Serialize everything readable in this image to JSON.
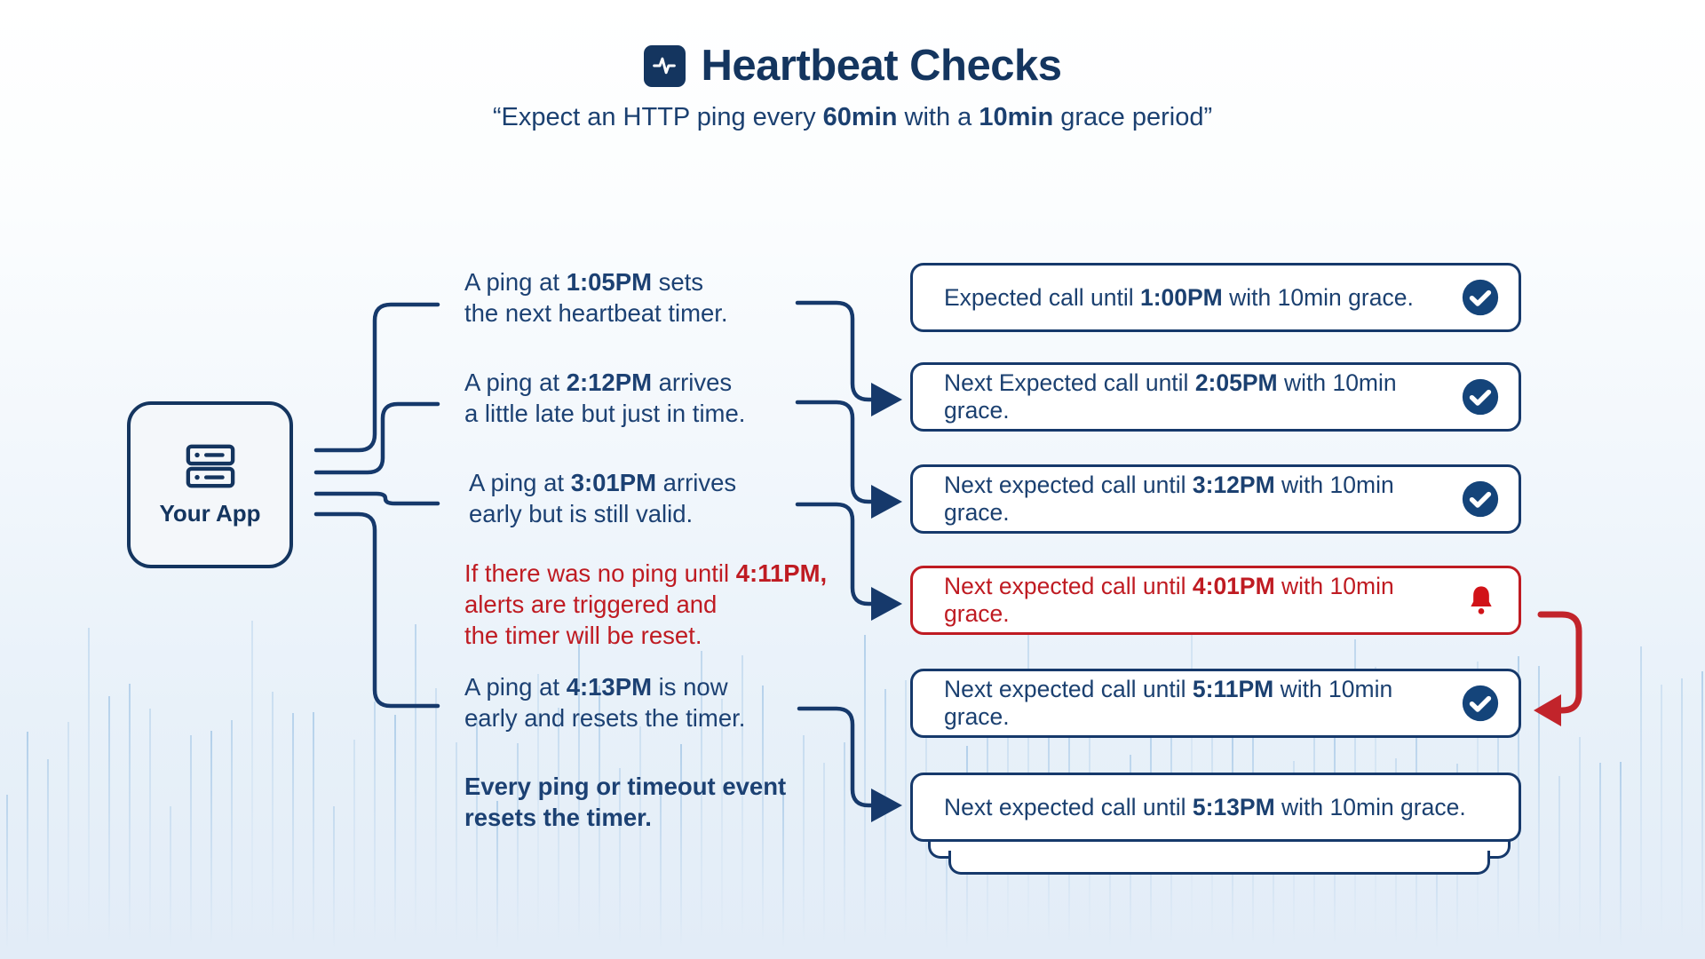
{
  "header": {
    "title": "Heartbeat Checks",
    "subtitle": {
      "prefix": "“Expect an HTTP ping every ",
      "interval": "60min",
      "middle": " with a ",
      "grace": "10min",
      "suffix": " grace period”"
    },
    "title_icon": "pulse-icon"
  },
  "app_box": {
    "label": "Your App",
    "icon": "server-icon"
  },
  "descriptions": [
    {
      "pre": "A ping at ",
      "time": "1:05PM",
      "post": " sets",
      "line2": "the next heartbeat timer."
    },
    {
      "pre": "A ping at ",
      "time": "2:12PM",
      "post": " arrives",
      "line2": "a little late but just in time."
    },
    {
      "pre": "A ping at ",
      "time": "3:01PM",
      "post": " arrives",
      "line2": "early but is still valid."
    },
    {
      "pre": "If there was no ping until ",
      "time": "4:11PM,",
      "post": "",
      "line2": "alerts are triggered and",
      "line3": "the timer will be reset."
    },
    {
      "pre": "A ping at ",
      "time": "4:13PM",
      "post": " is now",
      "line2": "early and resets the timer."
    },
    {
      "line1": "Every ping or timeout event",
      "line2": "resets the timer."
    }
  ],
  "boxes": [
    {
      "pre": "Expected call until ",
      "time": "1:00PM",
      "post": " with 10min grace.",
      "icon": "check"
    },
    {
      "pre": "Next Expected call until ",
      "time": "2:05PM",
      "post": " with 10min grace.",
      "icon": "check"
    },
    {
      "pre": "Next expected call until ",
      "time": "3:12PM",
      "post": " with 10min grace.",
      "icon": "check"
    },
    {
      "pre": "Next expected call until ",
      "time": "4:01PM",
      "post": " with 10min grace.",
      "icon": "bell"
    },
    {
      "pre": "Next expected call until ",
      "time": "5:11PM",
      "post": " with 10min grace.",
      "icon": "check"
    },
    {
      "pre": "Next expected call until ",
      "time": "5:13PM",
      "post": " with 10min grace.",
      "icon": "none"
    }
  ],
  "colors": {
    "navy": "#16396b",
    "navy_dark": "#14355f",
    "red": "#bf1b22",
    "red_bright": "#d11318",
    "wave_blue": "#6ea5d7"
  }
}
